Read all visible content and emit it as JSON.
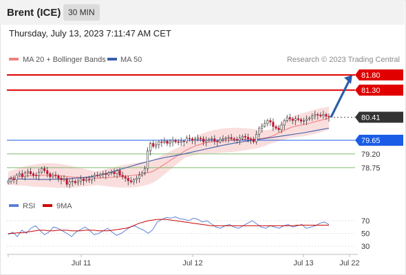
{
  "header": {
    "instrument": "Brent (ICE)",
    "timeframe": "30 MIN"
  },
  "timestamp": "Thursday, July 13, 2023 7:11:47 AM CET",
  "watermark": "Research © 2023 Trading Central",
  "legend": {
    "ma20": "MA 20 + Bollinger Bands",
    "ma50": "MA 50"
  },
  "rsi_legend": {
    "rsi": "RSI",
    "ma9": "9MA"
  },
  "colors": {
    "candle": "#c8102e",
    "bollinger": "#f8d3d3",
    "ma20": "#f08080",
    "ma50": "#3a5da8",
    "target": "#e00000",
    "support_blue": "#1a5ce6",
    "support_green": "#7dbb6a",
    "arrow": "#2a5caa",
    "current": "#333333",
    "rsi": "#5b7fd6",
    "rsi_ma": "#cc0000"
  },
  "chart_data": [
    {
      "type": "candlestick",
      "title": "Brent (ICE)",
      "timeframe": "30 MIN",
      "x_ticks": [
        "Jul 11",
        "Jul 12",
        "Jul 13",
        "Jul 22"
      ],
      "ylim": [
        77.75,
        82.05
      ],
      "levels": [
        {
          "value": 81.8,
          "label": "81.80",
          "role": "target"
        },
        {
          "value": 81.3,
          "label": "81.30",
          "role": "target"
        },
        {
          "value": 80.41,
          "label": "80.41",
          "role": "current"
        },
        {
          "value": 79.65,
          "label": "79.65",
          "role": "pivot"
        },
        {
          "value": 79.2,
          "label": "79.20",
          "role": "support"
        },
        {
          "value": 78.75,
          "label": "78.75",
          "role": "support"
        }
      ],
      "close": [
        78.3,
        78.38,
        78.35,
        78.5,
        78.55,
        78.45,
        78.58,
        78.62,
        78.55,
        78.5,
        78.48,
        78.6,
        78.72,
        78.65,
        78.55,
        78.45,
        78.5,
        78.48,
        78.4,
        78.35,
        78.38,
        78.2,
        78.28,
        78.3,
        78.25,
        78.3,
        78.38,
        78.32,
        78.36,
        78.34,
        78.45,
        78.5,
        78.48,
        78.53,
        78.55,
        78.52,
        78.58,
        78.6,
        78.55,
        78.65,
        78.5,
        78.45,
        78.4,
        78.32,
        78.28,
        78.35,
        78.4,
        78.5,
        78.58,
        78.72,
        79.3,
        79.55,
        79.45,
        79.5,
        79.6,
        79.58,
        79.62,
        79.55,
        79.6,
        79.65,
        79.6,
        79.58,
        79.62,
        79.6,
        79.72,
        79.7,
        79.65,
        79.68,
        79.72,
        79.7,
        79.6,
        79.65,
        79.68,
        79.7,
        79.62,
        79.6,
        79.67,
        79.7,
        79.72,
        79.74,
        79.7,
        79.68,
        79.65,
        79.72,
        79.78,
        79.75,
        79.7,
        79.68,
        79.6,
        79.85,
        80.05,
        80.12,
        80.2,
        80.3,
        80.25,
        80.1,
        80.05,
        80.0,
        80.15,
        80.3,
        80.4,
        80.35,
        80.3,
        80.36,
        80.33,
        80.28,
        80.3,
        80.35,
        80.38,
        80.45,
        80.5,
        80.48,
        80.45,
        80.5,
        80.44,
        80.41
      ],
      "ma20": [
        78.4,
        78.42,
        78.44,
        78.46,
        78.48,
        78.48,
        78.49,
        78.5,
        78.5,
        78.5,
        78.49,
        78.48,
        78.47,
        78.45,
        78.44,
        78.43,
        78.42,
        78.41,
        78.4,
        78.4,
        78.41,
        78.42,
        78.43,
        78.44,
        78.45,
        78.47,
        78.48,
        78.5,
        78.52,
        78.55,
        78.58,
        78.62,
        78.7,
        78.8,
        78.9,
        79.0,
        79.1,
        79.2,
        79.3,
        79.38,
        79.45,
        79.5,
        79.55,
        79.58,
        79.6,
        79.62,
        79.64,
        79.65,
        79.66,
        79.67,
        79.68,
        79.68,
        79.69,
        79.69,
        79.7,
        79.72,
        79.75,
        79.8,
        79.88,
        79.95,
        80.02,
        80.08,
        80.12,
        80.15,
        80.18,
        80.22,
        80.26,
        80.3,
        80.34,
        80.38
      ],
      "ma50": [
        78.38,
        78.38,
        78.37,
        78.37,
        78.36,
        78.36,
        78.37,
        78.38,
        78.4,
        78.42,
        78.45,
        78.5,
        78.56,
        78.64,
        78.72,
        78.8,
        78.88,
        78.95,
        79.02,
        79.08,
        79.13,
        79.18,
        79.24,
        79.3,
        79.36,
        79.42,
        79.48,
        79.53,
        79.58,
        79.62,
        79.66,
        79.7,
        79.74,
        79.78,
        79.82,
        79.86,
        79.9,
        79.95,
        80.0,
        80.05
      ],
      "rsi": [
        48,
        52,
        45,
        55,
        50,
        58,
        62,
        55,
        48,
        52,
        60,
        58,
        54,
        50,
        45,
        52,
        56,
        60,
        55,
        48,
        50,
        54,
        58,
        52,
        47,
        50,
        55,
        60,
        62,
        58,
        55,
        50,
        56,
        68,
        72,
        75,
        74,
        76,
        73,
        72,
        70,
        74,
        72,
        68,
        70,
        65,
        60,
        58,
        62,
        64,
        60,
        58,
        62,
        66,
        70,
        65,
        60,
        58,
        62,
        60,
        58,
        62,
        64,
        60,
        62,
        64,
        58,
        60,
        62,
        66,
        68,
        64
      ],
      "rsi_ma": [
        50,
        50,
        51,
        51,
        52,
        53,
        54,
        55,
        55,
        54,
        54,
        55,
        55,
        55,
        54,
        54,
        54,
        55,
        55,
        55,
        54,
        54,
        54,
        55,
        56,
        57,
        58,
        60,
        63,
        66,
        68,
        70,
        71,
        72,
        72,
        72,
        71,
        70,
        69,
        68,
        67,
        66,
        65,
        64,
        63,
        62,
        62,
        62,
        62,
        62,
        62,
        62,
        62,
        62,
        62,
        62,
        62,
        62,
        62,
        62,
        62,
        62,
        62,
        62,
        63,
        63,
        63,
        63,
        63,
        63,
        63,
        63
      ],
      "rsi_levels": [
        70,
        50,
        30
      ]
    }
  ]
}
